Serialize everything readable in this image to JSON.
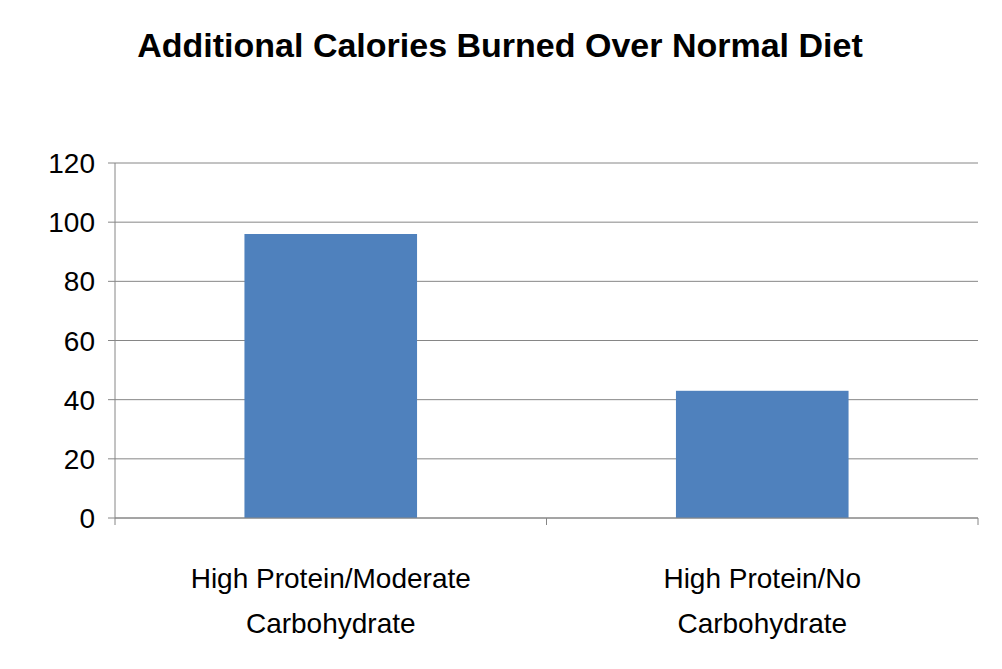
{
  "chart_data": {
    "type": "bar",
    "title": "Additional Calories Burned Over Normal Diet",
    "categories": [
      "High Protein/Moderate Carbohydrate",
      "High Protein/No Carbohydrate"
    ],
    "values": [
      96,
      43
    ],
    "color": "#4f81bd",
    "ylim": [
      0,
      120
    ],
    "yticks": [
      0,
      20,
      40,
      60,
      80,
      100,
      120
    ],
    "grid": true
  }
}
